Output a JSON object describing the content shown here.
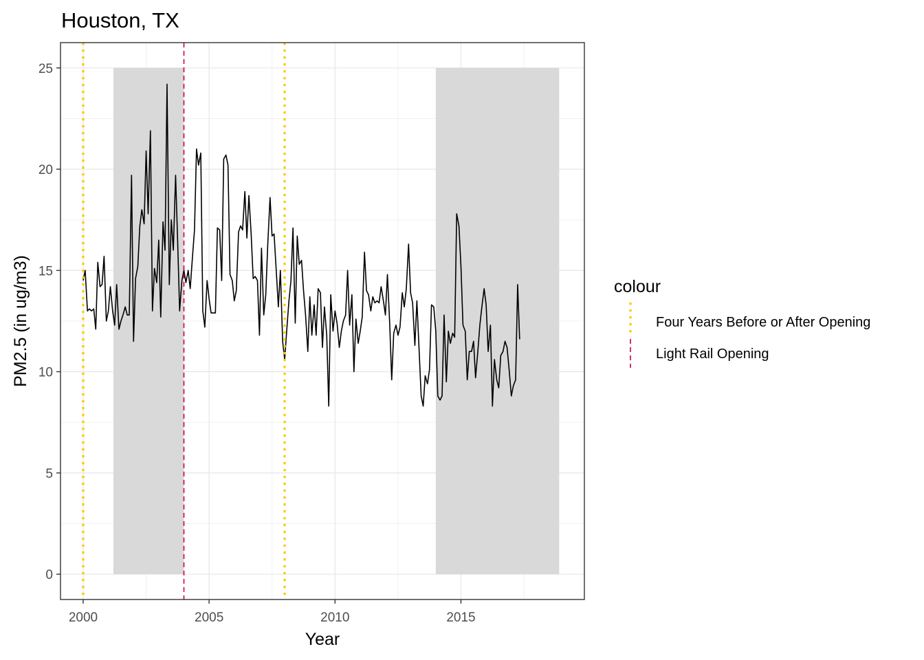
{
  "chart_data": {
    "type": "line",
    "title": "Houston, TX",
    "xlabel": "Year",
    "ylabel": "PM2.5 (in ug/m3)",
    "xlim": [
      1999.1,
      2019.9
    ],
    "ylim": [
      -1.25,
      26.25
    ],
    "x_ticks": [
      2000,
      2005,
      2010,
      2015
    ],
    "y_ticks": [
      0,
      5,
      10,
      15,
      20,
      25
    ],
    "grid": true,
    "legend": {
      "title": "colour",
      "position": "right",
      "entries": [
        {
          "label": "Four Years Before or After Opening",
          "color": "#FFCC00",
          "style": "dotted"
        },
        {
          "label": "Light Rail Opening",
          "color": "#CC0033",
          "style": "dashed"
        }
      ]
    },
    "shaded_regions": [
      {
        "x_start": 2001.2,
        "x_end": 2004.0,
        "y_start": 0,
        "y_end": 25,
        "color": "#D9D9D9"
      },
      {
        "x_start": 2014.0,
        "x_end": 2018.9,
        "y_start": 0,
        "y_end": 25,
        "color": "#D9D9D9"
      }
    ],
    "vertical_lines": [
      {
        "x": 2000,
        "series": "Four Years Before or After Opening"
      },
      {
        "x": 2004,
        "series": "Light Rail Opening"
      },
      {
        "x": 2008,
        "series": "Four Years Before or After Opening"
      }
    ],
    "series": [
      {
        "line_color": "#000000",
        "points": [
          [
            2000.0,
            14.5
          ],
          [
            2000.08,
            15.0
          ],
          [
            2000.17,
            13.0
          ],
          [
            2000.25,
            13.1
          ],
          [
            2000.33,
            13.0
          ],
          [
            2000.42,
            13.1
          ],
          [
            2000.5,
            12.1
          ],
          [
            2000.58,
            15.4
          ],
          [
            2000.67,
            14.2
          ],
          [
            2000.75,
            14.3
          ],
          [
            2000.83,
            15.7
          ],
          [
            2000.92,
            12.5
          ],
          [
            2001.0,
            13.0
          ],
          [
            2001.08,
            14.2
          ],
          [
            2001.17,
            13.0
          ],
          [
            2001.25,
            12.3
          ],
          [
            2001.33,
            14.3
          ],
          [
            2001.42,
            12.1
          ],
          [
            2001.5,
            12.5
          ],
          [
            2001.58,
            12.8
          ],
          [
            2001.67,
            13.2
          ],
          [
            2001.75,
            12.8
          ],
          [
            2001.83,
            12.8
          ],
          [
            2001.92,
            19.7
          ],
          [
            2002.0,
            11.5
          ],
          [
            2002.08,
            14.6
          ],
          [
            2002.17,
            15.2
          ],
          [
            2002.25,
            17.2
          ],
          [
            2002.33,
            18.0
          ],
          [
            2002.42,
            17.3
          ],
          [
            2002.5,
            20.9
          ],
          [
            2002.58,
            17.8
          ],
          [
            2002.67,
            21.9
          ],
          [
            2002.75,
            13.0
          ],
          [
            2002.83,
            15.1
          ],
          [
            2002.92,
            14.4
          ],
          [
            2003.0,
            16.5
          ],
          [
            2003.08,
            12.7
          ],
          [
            2003.17,
            17.4
          ],
          [
            2003.25,
            16.0
          ],
          [
            2003.33,
            24.2
          ],
          [
            2003.42,
            14.3
          ],
          [
            2003.5,
            17.5
          ],
          [
            2003.58,
            16.0
          ],
          [
            2003.67,
            19.7
          ],
          [
            2003.75,
            16.5
          ],
          [
            2003.83,
            13.0
          ],
          [
            2003.92,
            14.5
          ],
          [
            2004.0,
            15.0
          ],
          [
            2004.08,
            14.4
          ],
          [
            2004.17,
            15.0
          ],
          [
            2004.25,
            14.1
          ],
          [
            2004.33,
            15.5
          ],
          [
            2004.42,
            17.0
          ],
          [
            2004.5,
            21.0
          ],
          [
            2004.58,
            20.2
          ],
          [
            2004.67,
            20.8
          ],
          [
            2004.75,
            13.0
          ],
          [
            2004.83,
            12.2
          ],
          [
            2004.92,
            14.5
          ],
          [
            2005.0,
            13.6
          ],
          [
            2005.08,
            12.9
          ],
          [
            2005.17,
            12.9
          ],
          [
            2005.25,
            12.9
          ],
          [
            2005.33,
            17.1
          ],
          [
            2005.42,
            17.0
          ],
          [
            2005.5,
            14.5
          ],
          [
            2005.58,
            20.5
          ],
          [
            2005.67,
            20.7
          ],
          [
            2005.75,
            20.2
          ],
          [
            2005.83,
            14.8
          ],
          [
            2005.92,
            14.5
          ],
          [
            2006.0,
            13.5
          ],
          [
            2006.08,
            14.0
          ],
          [
            2006.17,
            16.9
          ],
          [
            2006.25,
            17.2
          ],
          [
            2006.33,
            17.0
          ],
          [
            2006.42,
            18.9
          ],
          [
            2006.5,
            16.6
          ],
          [
            2006.58,
            18.7
          ],
          [
            2006.67,
            16.8
          ],
          [
            2006.75,
            14.6
          ],
          [
            2006.83,
            14.7
          ],
          [
            2006.92,
            14.5
          ],
          [
            2007.0,
            11.8
          ],
          [
            2007.08,
            16.1
          ],
          [
            2007.17,
            12.8
          ],
          [
            2007.25,
            13.8
          ],
          [
            2007.33,
            16.3
          ],
          [
            2007.42,
            18.6
          ],
          [
            2007.5,
            16.7
          ],
          [
            2007.58,
            16.8
          ],
          [
            2007.67,
            14.9
          ],
          [
            2007.75,
            13.2
          ],
          [
            2007.83,
            15.0
          ],
          [
            2007.92,
            11.5
          ],
          [
            2008.0,
            10.6
          ],
          [
            2008.08,
            12.0
          ],
          [
            2008.17,
            13.5
          ],
          [
            2008.25,
            14.5
          ],
          [
            2008.33,
            17.1
          ],
          [
            2008.42,
            12.4
          ],
          [
            2008.5,
            16.7
          ],
          [
            2008.58,
            15.3
          ],
          [
            2008.67,
            15.5
          ],
          [
            2008.75,
            14.0
          ],
          [
            2008.83,
            12.8
          ],
          [
            2008.92,
            11.0
          ],
          [
            2009.0,
            13.7
          ],
          [
            2009.08,
            11.8
          ],
          [
            2009.17,
            13.3
          ],
          [
            2009.25,
            11.8
          ],
          [
            2009.33,
            14.1
          ],
          [
            2009.42,
            13.9
          ],
          [
            2009.5,
            11.2
          ],
          [
            2009.58,
            13.2
          ],
          [
            2009.67,
            11.8
          ],
          [
            2009.75,
            8.3
          ],
          [
            2009.83,
            13.8
          ],
          [
            2009.92,
            12.0
          ],
          [
            2010.0,
            13.0
          ],
          [
            2010.08,
            12.4
          ],
          [
            2010.17,
            11.2
          ],
          [
            2010.25,
            12.0
          ],
          [
            2010.33,
            12.5
          ],
          [
            2010.42,
            12.8
          ],
          [
            2010.5,
            15.0
          ],
          [
            2010.58,
            12.3
          ],
          [
            2010.67,
            13.8
          ],
          [
            2010.75,
            10.0
          ],
          [
            2010.83,
            12.6
          ],
          [
            2010.92,
            11.4
          ],
          [
            2011.0,
            12.0
          ],
          [
            2011.08,
            12.7
          ],
          [
            2011.17,
            15.9
          ],
          [
            2011.25,
            14.0
          ],
          [
            2011.33,
            13.8
          ],
          [
            2011.42,
            13.0
          ],
          [
            2011.5,
            13.7
          ],
          [
            2011.58,
            13.4
          ],
          [
            2011.67,
            13.5
          ],
          [
            2011.75,
            13.4
          ],
          [
            2011.83,
            14.2
          ],
          [
            2011.92,
            13.5
          ],
          [
            2012.0,
            12.8
          ],
          [
            2012.08,
            14.8
          ],
          [
            2012.17,
            12.4
          ],
          [
            2012.25,
            9.6
          ],
          [
            2012.33,
            11.9
          ],
          [
            2012.42,
            12.3
          ],
          [
            2012.5,
            11.8
          ],
          [
            2012.58,
            12.2
          ],
          [
            2012.67,
            13.9
          ],
          [
            2012.75,
            13.2
          ],
          [
            2012.83,
            14.1
          ],
          [
            2012.92,
            16.3
          ],
          [
            2013.0,
            13.9
          ],
          [
            2013.08,
            13.4
          ],
          [
            2013.17,
            11.3
          ],
          [
            2013.25,
            13.5
          ],
          [
            2013.33,
            11.3
          ],
          [
            2013.42,
            8.8
          ],
          [
            2013.5,
            8.3
          ],
          [
            2013.58,
            9.8
          ],
          [
            2013.67,
            9.4
          ],
          [
            2013.75,
            10.1
          ],
          [
            2013.83,
            13.3
          ],
          [
            2013.92,
            13.2
          ],
          [
            2014.0,
            12.0
          ],
          [
            2014.08,
            8.8
          ],
          [
            2014.17,
            8.6
          ],
          [
            2014.25,
            8.8
          ],
          [
            2014.33,
            12.8
          ],
          [
            2014.42,
            9.5
          ],
          [
            2014.5,
            12.0
          ],
          [
            2014.58,
            11.4
          ],
          [
            2014.67,
            11.9
          ],
          [
            2014.75,
            11.7
          ],
          [
            2014.83,
            17.8
          ],
          [
            2014.92,
            17.2
          ],
          [
            2015.0,
            15.2
          ],
          [
            2015.08,
            12.3
          ],
          [
            2015.17,
            12.0
          ],
          [
            2015.25,
            9.6
          ],
          [
            2015.33,
            11.0
          ],
          [
            2015.42,
            11.0
          ],
          [
            2015.5,
            11.5
          ],
          [
            2015.58,
            9.7
          ],
          [
            2015.67,
            11.0
          ],
          [
            2015.75,
            12.3
          ],
          [
            2015.83,
            13.2
          ],
          [
            2015.92,
            14.1
          ],
          [
            2016.0,
            13.3
          ],
          [
            2016.08,
            11.0
          ],
          [
            2016.17,
            12.3
          ],
          [
            2016.25,
            8.3
          ],
          [
            2016.33,
            10.6
          ],
          [
            2016.42,
            9.6
          ],
          [
            2016.5,
            9.2
          ],
          [
            2016.58,
            10.8
          ],
          [
            2016.67,
            11.0
          ],
          [
            2016.75,
            11.5
          ],
          [
            2016.83,
            11.2
          ],
          [
            2016.92,
            10.0
          ],
          [
            2017.0,
            8.8
          ],
          [
            2017.08,
            9.3
          ],
          [
            2017.17,
            9.6
          ],
          [
            2017.25,
            14.3
          ],
          [
            2017.33,
            11.6
          ]
        ]
      }
    ]
  }
}
